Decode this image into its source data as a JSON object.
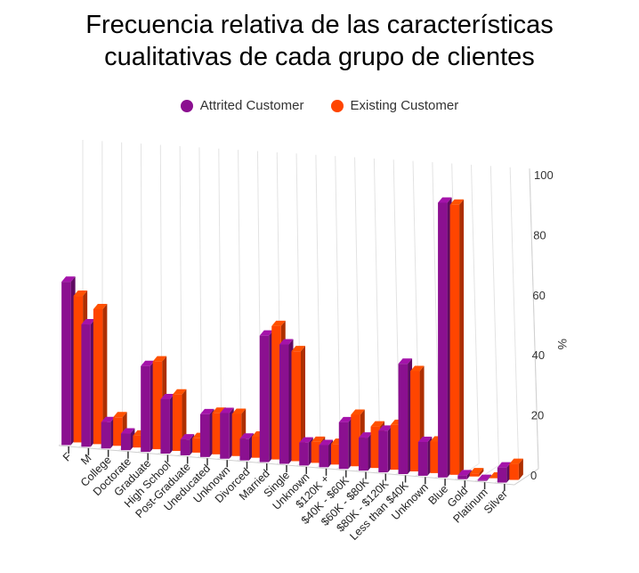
{
  "chart_data": {
    "type": "bar",
    "title_lines": [
      "Frecuencia relativa de las características",
      "cualitativas de cada grupo de clientes"
    ],
    "ylabel": "%",
    "ylim": [
      0,
      100
    ],
    "yticks": [
      "0",
      "20",
      "40",
      "60",
      "80",
      "100"
    ],
    "legend_position": "top",
    "grid": true,
    "categories": [
      "F",
      "M",
      "College",
      "Doctorate",
      "Graduate",
      "High School",
      "Post-Graduate",
      "Uneducated",
      "Unknown",
      "Divorced",
      "Married",
      "Single",
      "Unknown",
      "$120K +",
      "$40K - $60K",
      "$60K - $80K",
      "$80K - $120K",
      "Less than $40K",
      "Unknown",
      "Blue",
      "Gold",
      "Platinum",
      "Silver"
    ],
    "series": [
      {
        "name": "Attrited Customer",
        "color": "#8B1090",
        "values": [
          57.2,
          42.8,
          9.2,
          5.8,
          29.9,
          18.9,
          5.5,
          14.8,
          15.8,
          7.5,
          43.6,
          41.1,
          7.9,
          7.6,
          16.0,
          11.3,
          14.2,
          37.6,
          11.5,
          93.4,
          1.3,
          0.3,
          5.1
        ]
      },
      {
        "name": "Existing Customer",
        "color": "#FF4500",
        "values": [
          52.1,
          47.9,
          10.1,
          4.2,
          31.0,
          19.9,
          5.1,
          14.6,
          14.8,
          7.4,
          46.7,
          38.4,
          7.3,
          7.2,
          17.9,
          14.4,
          15.5,
          34.7,
          10.9,
          93.2,
          1.1,
          0.2,
          5.5
        ]
      }
    ]
  }
}
